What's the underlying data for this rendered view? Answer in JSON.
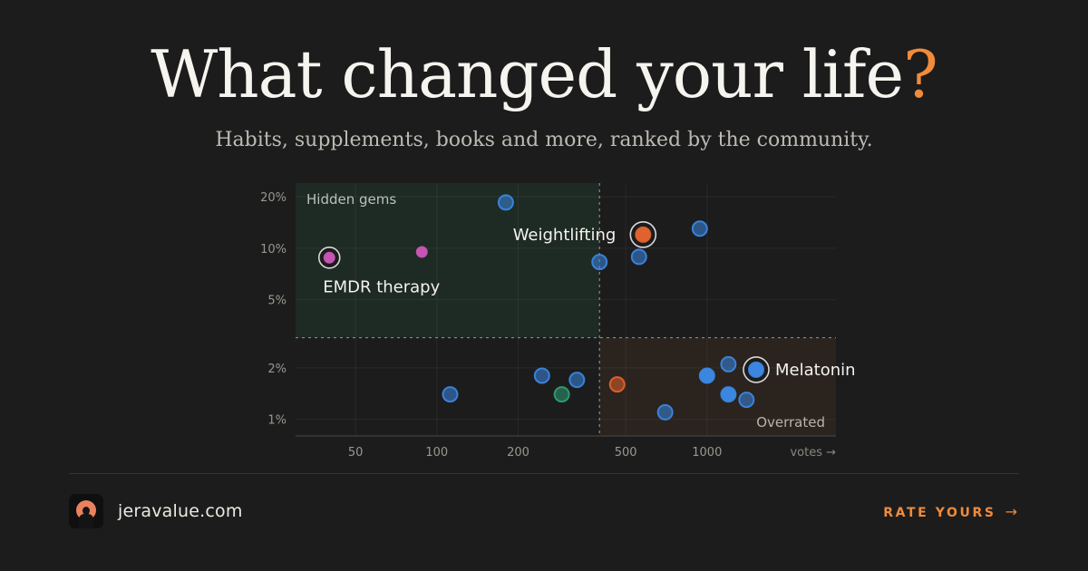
{
  "header": {
    "title": "What changed your life",
    "title_accent": "?",
    "subtitle": "Habits, supplements, books and more, ranked by the community."
  },
  "footer": {
    "brand": "jeravalue.com",
    "cta_label": "RATE YOURS",
    "cta_arrow": "→"
  },
  "colors": {
    "background": "#1c1c1c",
    "accent": "#f08b3b",
    "blue": "#3b86e0",
    "orange": "#e0622e",
    "magenta": "#c555b3",
    "green": "#2e9d72"
  },
  "chart_data": {
    "type": "scatter",
    "x_scale": "log",
    "y_scale": "log",
    "xlim": [
      30,
      3000
    ],
    "ylim": [
      0.8,
      24
    ],
    "x_ticks": [
      50,
      100,
      200,
      500,
      1000
    ],
    "x_tick_labels": [
      "50",
      "100",
      "200",
      "500",
      "1000"
    ],
    "y_ticks": [
      1,
      2,
      5,
      10,
      20
    ],
    "y_tick_labels": [
      "1%",
      "2%",
      "5%",
      "10%",
      "20%"
    ],
    "xlabel": "votes →",
    "ylabel": "",
    "grid": true,
    "thresholds": {
      "x": 400,
      "y": 3
    },
    "quadrants": [
      {
        "label": "Hidden gems",
        "region": "top-left"
      },
      {
        "label": "Overrated",
        "region": "bottom-right"
      }
    ],
    "points": [
      {
        "x": 40,
        "y": 8.8,
        "color": "magenta",
        "label": "EMDR therapy",
        "label_side": "below",
        "highlight": true
      },
      {
        "x": 88,
        "y": 9.5,
        "color": "magenta"
      },
      {
        "x": 180,
        "y": 18.5,
        "color": "blue",
        "faded": true
      },
      {
        "x": 580,
        "y": 12,
        "color": "orange",
        "label": "Weightlifting",
        "label_side": "left",
        "highlight": true
      },
      {
        "x": 940,
        "y": 13,
        "color": "blue",
        "faded": true
      },
      {
        "x": 400,
        "y": 8.3,
        "color": "blue",
        "faded": true
      },
      {
        "x": 560,
        "y": 8.9,
        "color": "blue",
        "faded": true
      },
      {
        "x": 112,
        "y": 1.4,
        "color": "blue",
        "faded": true
      },
      {
        "x": 245,
        "y": 1.8,
        "color": "blue",
        "faded": true
      },
      {
        "x": 290,
        "y": 1.4,
        "color": "green",
        "faded": true
      },
      {
        "x": 330,
        "y": 1.7,
        "color": "blue",
        "faded": true
      },
      {
        "x": 465,
        "y": 1.6,
        "color": "orange",
        "faded": true
      },
      {
        "x": 700,
        "y": 1.1,
        "color": "blue",
        "faded": true
      },
      {
        "x": 1000,
        "y": 1.8,
        "color": "blue"
      },
      {
        "x": 1200,
        "y": 2.1,
        "color": "blue",
        "faded": true
      },
      {
        "x": 1200,
        "y": 1.4,
        "color": "blue"
      },
      {
        "x": 1400,
        "y": 1.3,
        "color": "blue",
        "faded": true
      },
      {
        "x": 1520,
        "y": 1.95,
        "color": "blue",
        "label": "Melatonin",
        "label_side": "right",
        "highlight": true
      }
    ]
  }
}
